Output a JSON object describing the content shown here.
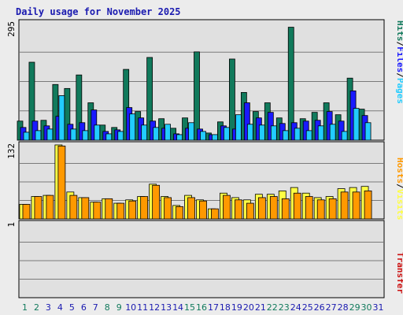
{
  "chart_data": {
    "type": "bar",
    "title": "Daily usage for November 2025",
    "x": [
      "1",
      "2",
      "3",
      "4",
      "5",
      "6",
      "7",
      "8",
      "9",
      "10",
      "11",
      "12",
      "13",
      "14",
      "15",
      "16",
      "17",
      "18",
      "19",
      "20",
      "21",
      "22",
      "23",
      "24",
      "25",
      "26",
      "27",
      "28",
      "29",
      "30",
      "31"
    ],
    "weekend_days": [
      "1",
      "2",
      "8",
      "9",
      "15",
      "16",
      "22",
      "23",
      "29",
      "30"
    ],
    "panels": [
      {
        "name": "hits-files-pages",
        "ymax_label": "295",
        "ymax": 295,
        "series": [
          {
            "name": "Hits",
            "color": "#117a5c",
            "values": [
              48,
              196,
              50,
              140,
              130,
              164,
              94,
              38,
              32,
              178,
              72,
              208,
              54,
              30,
              56,
              222,
              18,
              46,
              204,
              120,
              72,
              94,
              56,
              284,
              54,
              70,
              94,
              64,
              156,
              78,
              0
            ]
          },
          {
            "name": "Files",
            "color": "#1a1aff",
            "values": [
              32,
              48,
              36,
              60,
              40,
              44,
              76,
              22,
              26,
              82,
              56,
              48,
              30,
              16,
              30,
              28,
              14,
              36,
              28,
              94,
              56,
              70,
              42,
              44,
              48,
              50,
              72,
              48,
              124,
              62,
              0
            ]
          },
          {
            "name": "Pages",
            "color": "#22ccff",
            "values": [
              20,
              24,
              28,
              112,
              28,
              24,
              38,
              16,
              22,
              66,
              38,
              32,
              40,
              14,
              44,
              22,
              14,
              32,
              64,
              40,
              38,
              36,
              24,
              30,
              24,
              36,
              40,
              22,
              80,
              44,
              0
            ]
          }
        ]
      },
      {
        "name": "hosts-visits",
        "ymax_label": "132",
        "ymax": 132,
        "series": [
          {
            "name": "Visits",
            "color": "#ffff44",
            "values": [
              26,
              40,
              42,
              132,
              48,
              38,
              30,
              36,
              28,
              34,
              40,
              62,
              40,
              24,
              42,
              34,
              18,
              46,
              38,
              34,
              44,
              44,
              50,
              56,
              46,
              38,
              40,
              54,
              56,
              58,
              0
            ]
          },
          {
            "name": "Hosts",
            "color": "#ff9900",
            "values": [
              26,
              40,
              42,
              130,
              42,
              38,
              30,
              36,
              28,
              32,
              40,
              60,
              38,
              22,
              38,
              32,
              18,
              42,
              34,
              28,
              38,
              40,
              36,
              46,
              40,
              34,
              36,
              48,
              48,
              50,
              0
            ]
          }
        ]
      },
      {
        "name": "transfer",
        "ymax_label": "1",
        "ymax": 1,
        "series": [
          {
            "name": "Transfer",
            "color": "#cc1111",
            "values": [
              0,
              0,
              0,
              0,
              0,
              0,
              0,
              0,
              0,
              0,
              0,
              0,
              0,
              0,
              0,
              0,
              0,
              0,
              0,
              0,
              0,
              0,
              0,
              0,
              0,
              0,
              0,
              0,
              0,
              0,
              0
            ]
          }
        ]
      }
    ],
    "right_labels": {
      "top": [
        {
          "text": "Hits",
          "color": "#117a5c"
        },
        {
          "text": "/",
          "color": "#000000"
        },
        {
          "text": "Files",
          "color": "#1a1aff"
        },
        {
          "text": "/",
          "color": "#000000"
        },
        {
          "text": "Pages",
          "color": "#22ccff"
        }
      ],
      "middle": [
        {
          "text": "Hosts",
          "color": "#ff9900"
        },
        {
          "text": "/",
          "color": "#000000"
        },
        {
          "text": "Visits",
          "color": "#ffff44"
        }
      ],
      "bottom": [
        {
          "text": "Transfer",
          "color": "#cc1111"
        }
      ]
    },
    "colors": {
      "weekday_label": "#1a1ab0",
      "weekend_label": "#117a5c",
      "plot_bg": "#e0e0e0",
      "grid": "#7a7a7a"
    }
  }
}
